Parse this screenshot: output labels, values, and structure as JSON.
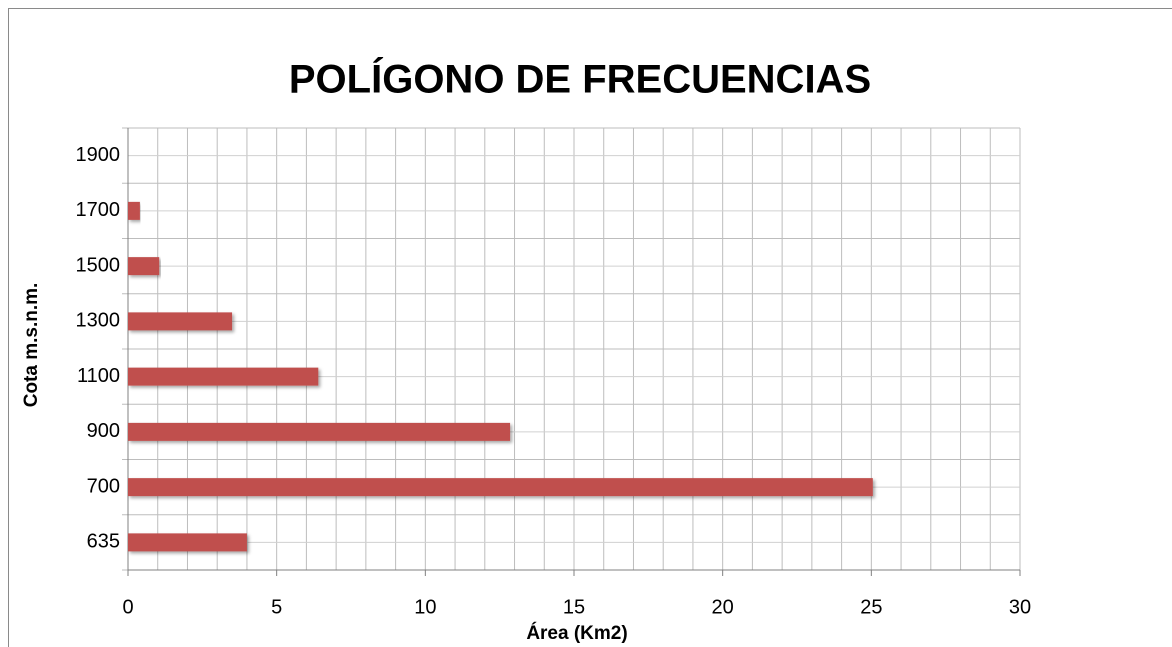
{
  "chart_data": {
    "type": "bar",
    "orientation": "horizontal",
    "title": "POLÍGONO DE FRECUENCIAS",
    "x_label": "Área (Km2)",
    "y_label": "Cota m.s.n.m.",
    "categories": [
      "635",
      "700",
      "900",
      "1100",
      "1300",
      "1500",
      "1700",
      "1900"
    ],
    "values": [
      4.0,
      25.05,
      12.85,
      6.4,
      3.5,
      1.05,
      0.4,
      0
    ],
    "color": "#c0504d",
    "xlim": [
      0,
      30
    ],
    "xticks": [
      0,
      5,
      10,
      15,
      20,
      25,
      30
    ],
    "xgrid": [
      0,
      1,
      2,
      3,
      4,
      5,
      6,
      7,
      8,
      9,
      10,
      11,
      12,
      13,
      14,
      15,
      16,
      17,
      18,
      19,
      20,
      21,
      22,
      23,
      24,
      25,
      26,
      27,
      28,
      29,
      30
    ],
    "grid": true
  }
}
